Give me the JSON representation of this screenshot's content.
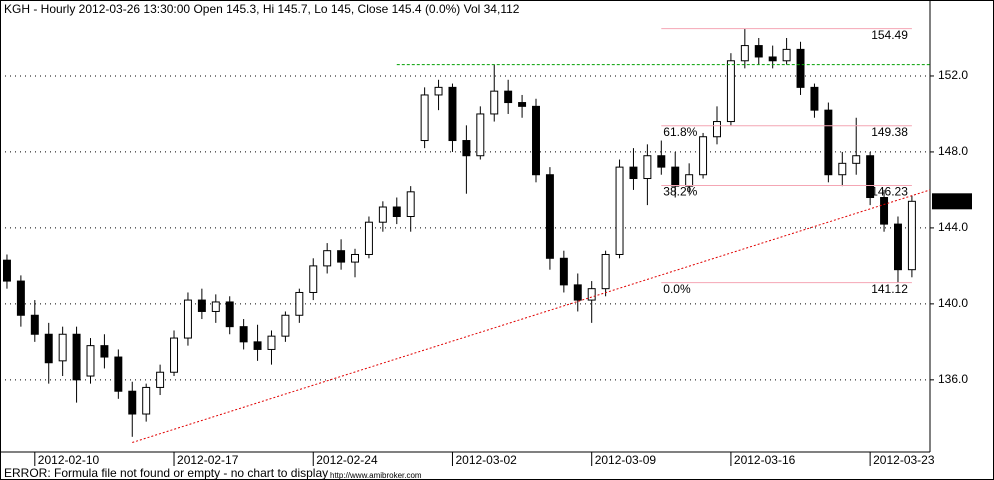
{
  "chart_data": {
    "type": "candlestick",
    "title": "KGH - Hourly 2012-03-26 13:30:00 Open 145.3, Hi 145.7, Lo 145, Close 145.4 (0.0%) Vol 34,112",
    "footer": "ERROR: Formula file not found or empty - no chart to display",
    "footer_url": "http://www.amibroker.com",
    "xlim": [
      -0.5,
      66.3
    ],
    "ylim": [
      132.2,
      156
    ],
    "yticks": [
      {
        "value": 136,
        "label": "136.0"
      },
      {
        "value": 140,
        "label": "140.0"
      },
      {
        "value": 144,
        "label": "144.0"
      },
      {
        "value": 148,
        "label": "148.0"
      },
      {
        "value": 152,
        "label": "152.0"
      }
    ],
    "xticks": [
      {
        "value": 2,
        "label": "2012-02-10"
      },
      {
        "value": 12,
        "label": "2012-02-17"
      },
      {
        "value": 22,
        "label": "2012-02-24"
      },
      {
        "value": 32,
        "label": "2012-03-02"
      },
      {
        "value": 42,
        "label": "2012-03-09"
      },
      {
        "value": 52,
        "label": "2012-03-16"
      },
      {
        "value": 62,
        "label": "2012-03-23"
      }
    ],
    "grid": true,
    "up_color": "#ffffff",
    "down_color": "#000000",
    "last_price": 145.4,
    "candles": [
      [
        142.3,
        142.6,
        140.8,
        141.2
      ],
      [
        141.2,
        141.5,
        138.8,
        139.4
      ],
      [
        139.4,
        140.2,
        138.0,
        138.4
      ],
      [
        138.4,
        139.0,
        135.8,
        136.9
      ],
      [
        137.0,
        138.8,
        136.2,
        138.4
      ],
      [
        138.4,
        138.8,
        134.8,
        136.0
      ],
      [
        136.2,
        138.2,
        135.8,
        137.8
      ],
      [
        137.8,
        138.4,
        136.6,
        137.2
      ],
      [
        137.2,
        137.6,
        135.0,
        135.4
      ],
      [
        135.4,
        135.9,
        133.0,
        134.2
      ],
      [
        134.2,
        135.8,
        133.8,
        135.6
      ],
      [
        135.6,
        136.8,
        135.2,
        136.4
      ],
      [
        136.4,
        138.6,
        136.2,
        138.2
      ],
      [
        138.2,
        140.6,
        137.8,
        140.2
      ],
      [
        140.2,
        140.8,
        139.2,
        139.6
      ],
      [
        139.6,
        140.5,
        139.0,
        140.1
      ],
      [
        140.1,
        140.4,
        138.4,
        138.8
      ],
      [
        138.8,
        139.2,
        137.6,
        138.0
      ],
      [
        138.0,
        138.9,
        137.0,
        137.6
      ],
      [
        137.6,
        138.6,
        136.8,
        138.3
      ],
      [
        138.3,
        139.6,
        138.0,
        139.4
      ],
      [
        139.4,
        140.8,
        139.0,
        140.6
      ],
      [
        140.6,
        142.4,
        140.2,
        142.0
      ],
      [
        142.0,
        143.2,
        141.6,
        142.8
      ],
      [
        142.8,
        143.4,
        141.8,
        142.2
      ],
      [
        142.2,
        142.9,
        141.4,
        142.6
      ],
      [
        142.6,
        144.6,
        142.4,
        144.3
      ],
      [
        144.3,
        145.4,
        143.8,
        145.1
      ],
      [
        145.1,
        145.6,
        144.2,
        144.6
      ],
      [
        144.6,
        146.2,
        143.8,
        145.9
      ],
      [
        148.6,
        151.4,
        148.2,
        151.0
      ],
      [
        151.0,
        151.8,
        150.2,
        151.4
      ],
      [
        151.4,
        151.6,
        148.0,
        148.6
      ],
      [
        148.6,
        149.4,
        145.8,
        147.8
      ],
      [
        147.8,
        150.4,
        147.6,
        150.0
      ],
      [
        150.0,
        152.6,
        149.6,
        151.2
      ],
      [
        151.2,
        151.8,
        150.0,
        150.6
      ],
      [
        150.6,
        151.0,
        149.8,
        150.4
      ],
      [
        150.4,
        150.8,
        146.4,
        146.8
      ],
      [
        146.8,
        147.2,
        141.8,
        142.4
      ],
      [
        142.4,
        142.8,
        140.6,
        141.0
      ],
      [
        141.0,
        141.6,
        139.6,
        140.2
      ],
      [
        140.2,
        141.2,
        139.0,
        140.8
      ],
      [
        140.8,
        142.8,
        140.4,
        142.6
      ],
      [
        142.6,
        147.6,
        142.4,
        147.2
      ],
      [
        147.2,
        148.2,
        146.0,
        146.6
      ],
      [
        146.6,
        148.4,
        145.2,
        147.8
      ],
      [
        147.8,
        148.6,
        146.8,
        147.2
      ],
      [
        147.2,
        148.0,
        145.6,
        146.2
      ],
      [
        146.2,
        147.4,
        145.8,
        146.8
      ],
      [
        146.8,
        149.0,
        146.6,
        148.8
      ],
      [
        148.8,
        150.4,
        148.4,
        149.6
      ],
      [
        149.6,
        153.2,
        149.4,
        152.8
      ],
      [
        152.8,
        154.49,
        152.4,
        153.6
      ],
      [
        153.6,
        154.0,
        152.6,
        153.0
      ],
      [
        153.0,
        153.6,
        152.4,
        152.8
      ],
      [
        152.8,
        154.0,
        152.6,
        153.4
      ],
      [
        153.4,
        153.8,
        151.0,
        151.4
      ],
      [
        151.4,
        151.6,
        149.8,
        150.2
      ],
      [
        150.2,
        150.6,
        146.4,
        146.8
      ],
      [
        146.8,
        148.0,
        146.2,
        147.4
      ],
      [
        147.4,
        149.8,
        146.8,
        147.8
      ],
      [
        147.8,
        148.0,
        145.2,
        145.6
      ],
      [
        145.6,
        146.0,
        143.8,
        144.2
      ],
      [
        144.2,
        144.6,
        141.12,
        141.8
      ],
      [
        141.8,
        145.7,
        141.4,
        145.4
      ]
    ],
    "resistance": {
      "from": 28,
      "value": 152.6,
      "color": "#00a000"
    },
    "trendline": {
      "x": [
        9,
        66.3
      ],
      "y": [
        132.7,
        146.0
      ],
      "color": "#e00000"
    },
    "fibonacci": {
      "from": 47,
      "to": 65,
      "line_color": "#f4a6b4",
      "levels": [
        {
          "value": 154.49,
          "color": "#f4b6c2"
        },
        {
          "pct": "61.8%",
          "value": 149.38,
          "color": "#a0522d"
        },
        {
          "pct": "38.2%",
          "value": 146.23,
          "color": "#a0522d"
        },
        {
          "pct": "0.0%",
          "value": 141.12,
          "color": "#f4b6c2"
        }
      ]
    }
  }
}
